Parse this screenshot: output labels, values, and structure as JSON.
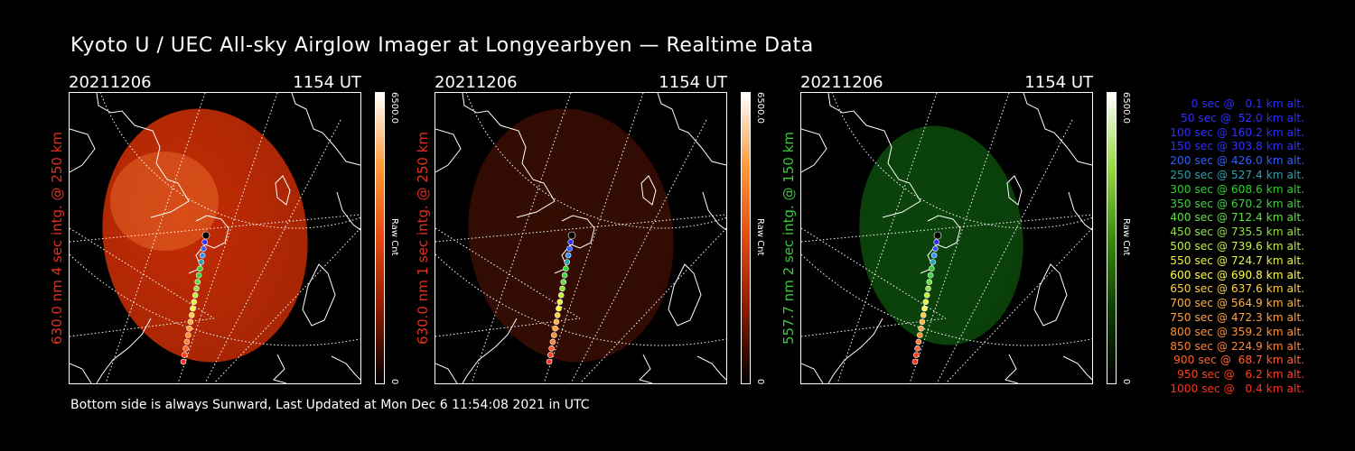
{
  "title": "Kyoto U / UEC All-sky Airglow Imager at Longyearbyen — Realtime Data",
  "footer": "Bottom side is always Sunward, Last Updated at Mon Dec  6 11:54:08 2021 in UTC",
  "colors": {
    "red_label": "#e03020",
    "green_label": "#3cc83c",
    "legend_blue": "#2a2aff"
  },
  "panels": [
    {
      "date": "20211206",
      "time": "1154 UT",
      "side_label": "630.0 nm 4 sec intg. @ 250 km",
      "label_color": "#e03020",
      "cbar_max": "6500.0",
      "cbar_unit": "Raw Cnt",
      "cbar_min": "0",
      "cbar_colors": [
        "#ffffff",
        "#ff9a3a",
        "#e34a10",
        "#8a1a00",
        "#000000"
      ],
      "image_color": "#c42c04",
      "image_level": 1.0
    },
    {
      "date": "20211206",
      "time": "1154 UT",
      "side_label": "630.0 nm 1 sec intg. @ 250 km",
      "label_color": "#e03020",
      "cbar_max": "6500.0",
      "cbar_unit": "Raw Cnt",
      "cbar_min": "0",
      "cbar_colors": [
        "#ffffff",
        "#ff9a3a",
        "#e34a10",
        "#8a1a00",
        "#000000"
      ],
      "image_color": "#3a0d02",
      "image_level": 0.25
    },
    {
      "date": "20211206",
      "time": "1154 UT",
      "side_label": "557.7 nm 2 sec intg. @ 150 km",
      "label_color": "#3cc83c",
      "cbar_max": "6500.0",
      "cbar_unit": "Raw Cnt",
      "cbar_min": "0",
      "cbar_colors": [
        "#ffffff",
        "#9ad84a",
        "#3a8a10",
        "#103a05",
        "#000000"
      ],
      "image_color": "#0c4a0c",
      "image_level": 0.45
    }
  ],
  "legend": [
    {
      "text": "0 sec @   0.1 km alt.",
      "color": "#3030ff"
    },
    {
      "text": "50 sec @  52.0 km alt.",
      "color": "#3030ff"
    },
    {
      "text": "100 sec @ 160.2 km alt.",
      "color": "#3030ff"
    },
    {
      "text": "150 sec @ 303.8 km alt.",
      "color": "#3030ff"
    },
    {
      "text": "200 sec @ 426.0 km alt.",
      "color": "#3060ff"
    },
    {
      "text": "250 sec @ 527.4 km alt.",
      "color": "#2aa0b0"
    },
    {
      "text": "300 sec @ 608.6 km alt.",
      "color": "#2ed02e"
    },
    {
      "text": "350 sec @ 670.2 km alt.",
      "color": "#40d040"
    },
    {
      "text": "400 sec @ 712.4 km alt.",
      "color": "#60e040"
    },
    {
      "text": "450 sec @ 735.5 km alt.",
      "color": "#90e040"
    },
    {
      "text": "500 sec @ 739.6 km alt.",
      "color": "#c0f040"
    },
    {
      "text": "550 sec @ 724.7 km alt.",
      "color": "#e8f040"
    },
    {
      "text": "600 sec @ 690.8 km alt.",
      "color": "#ffff40"
    },
    {
      "text": "650 sec @ 637.6 km alt.",
      "color": "#ffd040"
    },
    {
      "text": "700 sec @ 564.9 km alt.",
      "color": "#ffb040"
    },
    {
      "text": "750 sec @ 472.3 km alt.",
      "color": "#ffa040"
    },
    {
      "text": "800 sec @ 359.2 km alt.",
      "color": "#ff9030"
    },
    {
      "text": "850 sec @ 224.9 km alt.",
      "color": "#ff8030"
    },
    {
      "text": "900 sec @  68.7 km alt.",
      "color": "#ff6030"
    },
    {
      "text": "950 sec @   6.2 km alt.",
      "color": "#ff4020"
    },
    {
      "text": "1000 sec @   0.4 km alt.",
      "color": "#ff3020"
    }
  ],
  "trajectory_colors": [
    "#000000",
    "#3030ff",
    "#3060ff",
    "#3090ff",
    "#2aa0b0",
    "#2ed02e",
    "#40d040",
    "#60e040",
    "#90e040",
    "#c0f040",
    "#e8f040",
    "#ffff40",
    "#ffd040",
    "#ffb040",
    "#ffa040",
    "#ff9030",
    "#ff8030",
    "#ff6030",
    "#ff4020",
    "#ff3020"
  ]
}
